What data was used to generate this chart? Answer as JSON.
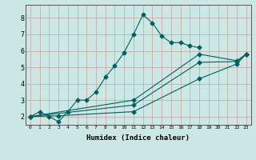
{
  "xlabel": "Humidex (Indice chaleur)",
  "ylabel": "",
  "xlim": [
    -0.5,
    23.5
  ],
  "ylim": [
    1.5,
    8.8
  ],
  "bg_color": "#cce8e4",
  "line_color": "#006060",
  "grid_color": "#c8a0a0",
  "lines": [
    {
      "x": [
        0,
        1,
        2,
        3,
        4,
        5,
        6,
        7,
        8,
        9,
        10,
        11,
        12,
        13,
        14,
        15,
        16,
        17,
        18
      ],
      "y": [
        2.0,
        2.3,
        2.0,
        1.7,
        2.3,
        3.0,
        3.0,
        3.5,
        4.4,
        5.1,
        5.9,
        7.0,
        8.2,
        7.7,
        6.9,
        6.5,
        6.5,
        6.3,
        6.2
      ],
      "marker": "D",
      "markersize": 2.5
    },
    {
      "x": [
        0,
        11,
        18,
        22,
        23
      ],
      "y": [
        2.0,
        3.0,
        5.8,
        5.4,
        5.8
      ],
      "marker": "D",
      "markersize": 2.5
    },
    {
      "x": [
        0,
        11,
        18,
        22,
        23
      ],
      "y": [
        2.0,
        2.7,
        5.3,
        5.35,
        5.8
      ],
      "marker": "D",
      "markersize": 2.5
    },
    {
      "x": [
        0,
        3,
        11,
        18,
        22,
        23
      ],
      "y": [
        2.0,
        2.05,
        2.3,
        4.3,
        5.2,
        5.8
      ],
      "marker": "D",
      "markersize": 2.5
    }
  ],
  "yticks": [
    2,
    3,
    4,
    5,
    6,
    7,
    8
  ],
  "xticks": [
    0,
    1,
    2,
    3,
    4,
    5,
    6,
    7,
    8,
    9,
    10,
    11,
    12,
    13,
    14,
    15,
    16,
    17,
    18,
    19,
    20,
    21,
    22,
    23
  ]
}
